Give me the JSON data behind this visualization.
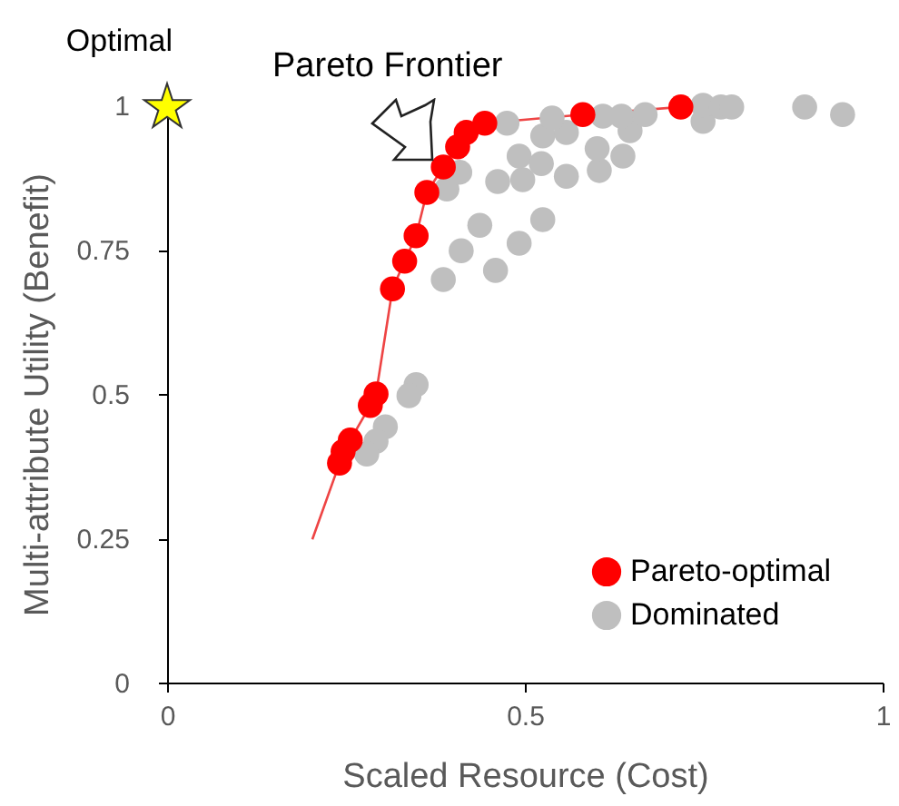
{
  "chart_data": {
    "type": "scatter",
    "xlabel": "Scaled Resource (Cost)",
    "ylabel": "Multi-attribute Utility (Benefit)",
    "xlim": [
      0,
      1
    ],
    "xticks": [
      0,
      0.5,
      1
    ],
    "ylim": [
      0,
      1
    ],
    "yticks": [
      0,
      0.25,
      0.5,
      0.75,
      1
    ],
    "legend": "bottom right",
    "annotations": [
      "Pareto Frontier",
      {
        "text": "Optimal",
        "x": 0,
        "y": 1
      }
    ],
    "series": [
      {
        "type": "line",
        "color": "#ee4444",
        "marker": "none",
        "x": [
          0.203,
          0.241,
          0.246,
          0.256,
          0.284,
          0.292,
          0.315,
          0.332,
          0.348,
          0.363,
          0.386,
          0.406,
          0.418,
          0.444,
          0.581,
          0.718
        ],
        "values": [
          0.248,
          0.38,
          0.4,
          0.42,
          0.48,
          0.5,
          0.682,
          0.73,
          0.774,
          0.849,
          0.893,
          0.928,
          0.953,
          0.969,
          0.984,
          0.997
        ]
      },
      {
        "type": "scatter",
        "name": "Pareto-optimal",
        "color": "#ff0000",
        "marker": "circle",
        "x": [
          0.241,
          0.246,
          0.256,
          0.284,
          0.292,
          0.315,
          0.332,
          0.348,
          0.363,
          0.386,
          0.406,
          0.418,
          0.444,
          0.581,
          0.718
        ],
        "values": [
          0.38,
          0.4,
          0.42,
          0.48,
          0.5,
          0.682,
          0.73,
          0.774,
          0.849,
          0.893,
          0.928,
          0.953,
          0.969,
          0.984,
          0.997
        ]
      },
      {
        "type": "scatter",
        "name": "Dominated",
        "color": "#bfbfbf",
        "marker": "circle",
        "x": [
          0.386,
          0.411,
          0.437,
          0.459,
          0.492,
          0.525,
          0.391,
          0.409,
          0.462,
          0.497,
          0.492,
          0.523,
          0.558,
          0.604,
          0.601,
          0.637,
          0.525,
          0.558,
          0.475,
          0.538,
          0.647,
          0.609,
          0.635,
          0.668,
          0.713,
          0.749,
          0.749,
          0.774,
          0.789,
          0.891,
          0.944,
          0.348,
          0.338,
          0.305,
          0.292,
          0.279
        ],
        "values": [
          0.698,
          0.748,
          0.792,
          0.714,
          0.761,
          0.802,
          0.855,
          0.884,
          0.868,
          0.871,
          0.912,
          0.899,
          0.877,
          0.887,
          0.925,
          0.912,
          0.947,
          0.953,
          0.969,
          0.978,
          0.956,
          0.981,
          0.981,
          0.984,
          null,
          0.972,
          1.0,
          0.997,
          0.997,
          0.997,
          0.984,
          0.516,
          0.497,
          0.443,
          0.418,
          0.396
        ]
      },
      {
        "type": "scatter",
        "color": "#ffff00",
        "marker": "star",
        "x": [
          0
        ],
        "values": [
          1
        ]
      }
    ]
  }
}
